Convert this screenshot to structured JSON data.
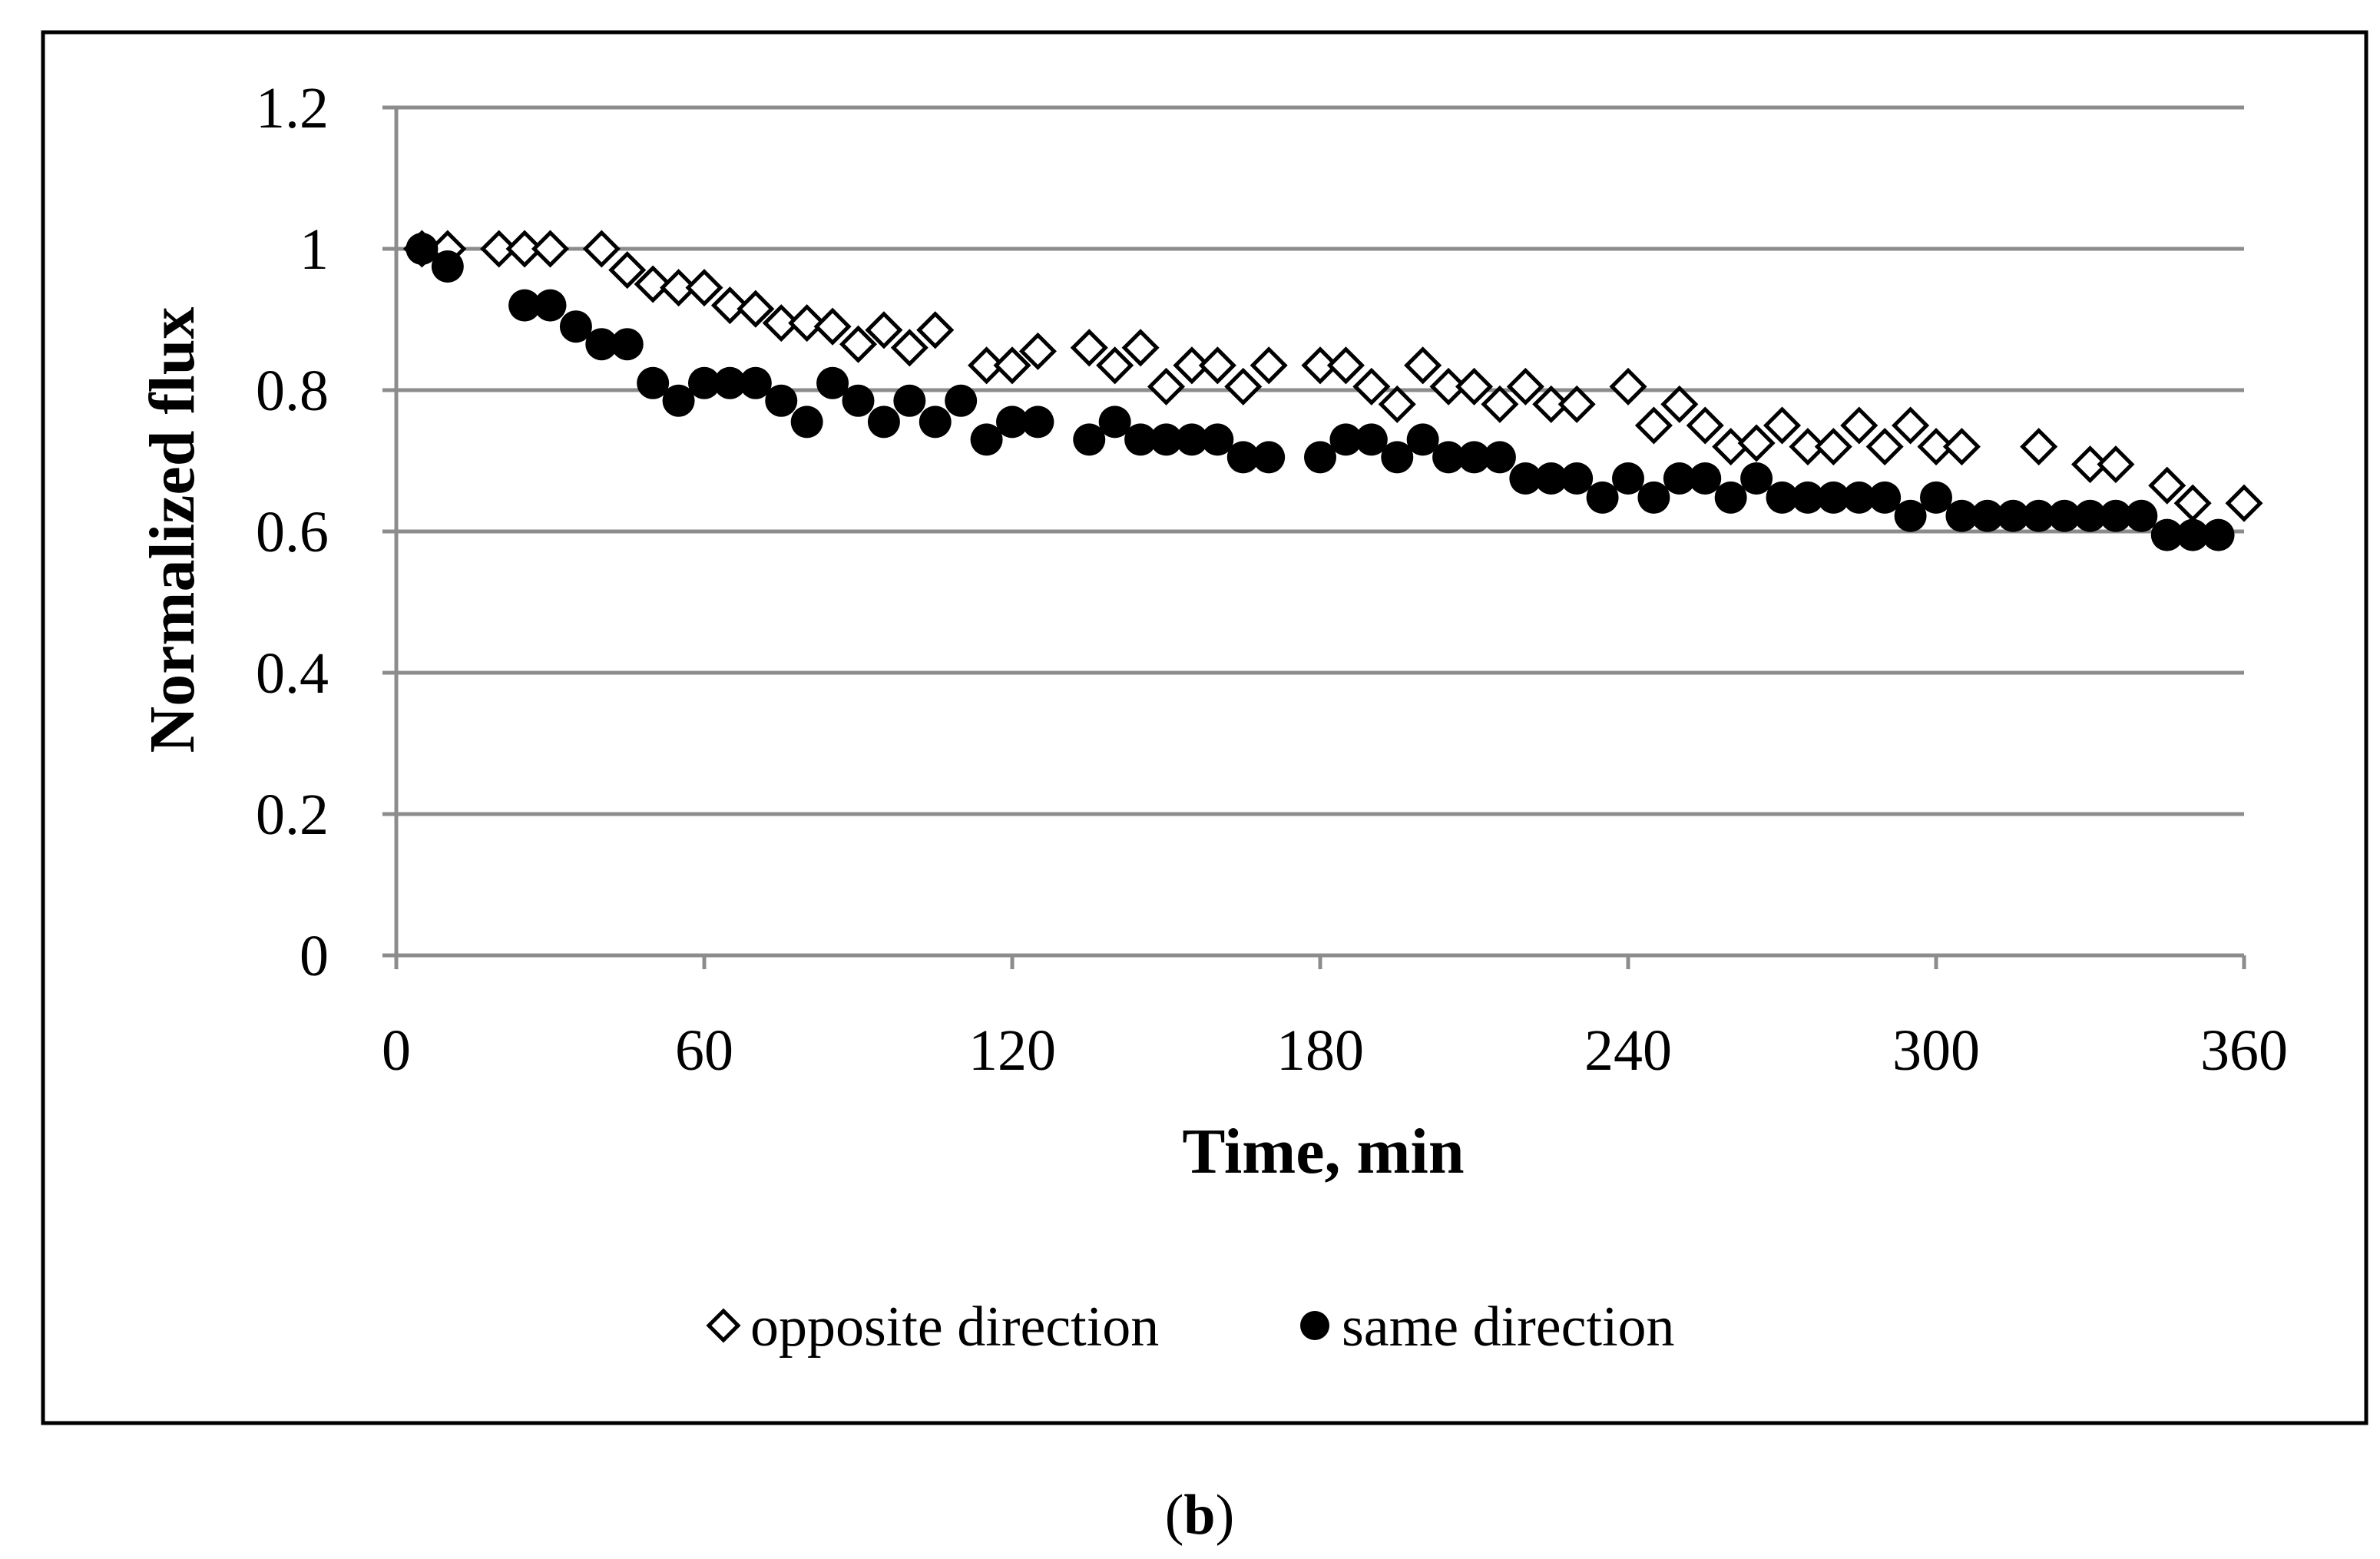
{
  "chart_data": {
    "type": "scatter",
    "title": "",
    "xlabel": "Time, min",
    "ylabel": "Normalized flux",
    "xlim": [
      0,
      360
    ],
    "ylim": [
      0,
      1.2
    ],
    "xticks": [
      0,
      60,
      120,
      180,
      240,
      300,
      360
    ],
    "yticks": [
      0,
      0.2,
      0.4,
      0.6,
      0.8,
      1,
      1.2
    ],
    "xtick_labels": [
      "0",
      "60",
      "120",
      "180",
      "240",
      "300",
      "360"
    ],
    "ytick_labels": [
      "0",
      "0.2",
      "0.4",
      "0.6",
      "0.8",
      "1",
      "1.2"
    ],
    "grid": "horizontal",
    "legend_position": "bottom",
    "series": [
      {
        "name": "opposite direction",
        "marker": "diamond-open",
        "x": [
          5,
          10,
          20,
          25,
          30,
          40,
          45,
          50,
          55,
          60,
          65,
          70,
          75,
          80,
          85,
          90,
          95,
          100,
          105,
          115,
          120,
          125,
          135,
          140,
          145,
          150,
          155,
          160,
          165,
          170,
          180,
          185,
          190,
          195,
          200,
          205,
          210,
          215,
          220,
          225,
          230,
          240,
          245,
          250,
          255,
          260,
          265,
          270,
          275,
          280,
          285,
          290,
          295,
          300,
          305,
          320,
          330,
          335,
          345,
          350,
          360
        ],
        "y": [
          1.0,
          1.0,
          1.0,
          1.0,
          1.0,
          1.0,
          0.97,
          0.95,
          0.945,
          0.945,
          0.92,
          0.915,
          0.895,
          0.895,
          0.89,
          0.865,
          0.885,
          0.86,
          0.885,
          0.835,
          0.835,
          0.855,
          0.86,
          0.835,
          0.86,
          0.805,
          0.835,
          0.835,
          0.805,
          0.835,
          0.835,
          0.835,
          0.805,
          0.78,
          0.835,
          0.805,
          0.805,
          0.78,
          0.805,
          0.78,
          0.78,
          0.805,
          0.75,
          0.78,
          0.75,
          0.72,
          0.725,
          0.75,
          0.72,
          0.72,
          0.75,
          0.72,
          0.75,
          0.72,
          0.72,
          0.72,
          0.695,
          0.695,
          0.665,
          0.64,
          0.64
        ]
      },
      {
        "name": "same direction",
        "marker": "circle-filled",
        "x": [
          5,
          10,
          25,
          30,
          35,
          40,
          45,
          50,
          55,
          60,
          65,
          70,
          75,
          80,
          85,
          90,
          95,
          100,
          105,
          110,
          115,
          120,
          125,
          135,
          140,
          145,
          150,
          155,
          160,
          165,
          170,
          180,
          185,
          190,
          195,
          200,
          205,
          210,
          215,
          220,
          225,
          230,
          235,
          240,
          245,
          250,
          255,
          260,
          265,
          270,
          275,
          280,
          285,
          290,
          295,
          300,
          305,
          310,
          315,
          320,
          325,
          330,
          335,
          340,
          345,
          350,
          355
        ],
        "y": [
          1.0,
          0.975,
          0.92,
          0.92,
          0.89,
          0.865,
          0.865,
          0.81,
          0.785,
          0.81,
          0.81,
          0.81,
          0.785,
          0.755,
          0.81,
          0.785,
          0.755,
          0.785,
          0.755,
          0.785,
          0.73,
          0.755,
          0.755,
          0.73,
          0.755,
          0.73,
          0.73,
          0.73,
          0.73,
          0.705,
          0.705,
          0.705,
          0.73,
          0.73,
          0.705,
          0.73,
          0.705,
          0.705,
          0.705,
          0.675,
          0.675,
          0.675,
          0.648,
          0.675,
          0.648,
          0.675,
          0.675,
          0.648,
          0.675,
          0.648,
          0.648,
          0.648,
          0.648,
          0.648,
          0.622,
          0.648,
          0.622,
          0.622,
          0.622,
          0.622,
          0.622,
          0.622,
          0.622,
          0.622,
          0.595,
          0.595,
          0.595
        ]
      }
    ]
  },
  "caption": {
    "open_paren": "(",
    "letter": "b",
    "close_paren": ")"
  },
  "colors": {
    "gridline": "#8c8c8c",
    "axis": "#8c8c8c",
    "marker": "#000000",
    "frame": "#000000",
    "background": "#ffffff"
  }
}
